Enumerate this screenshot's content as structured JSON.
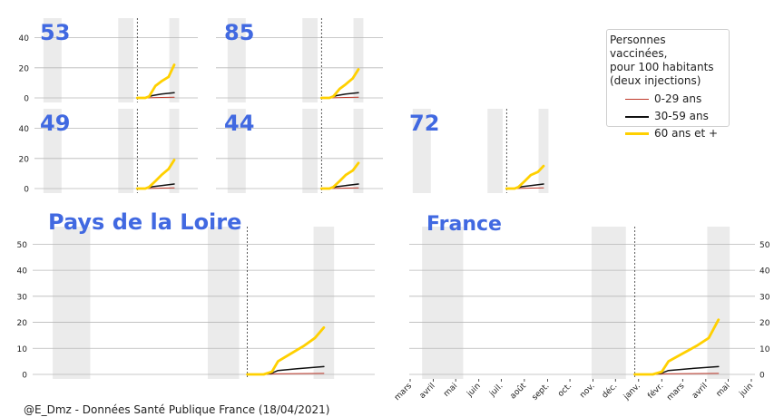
{
  "legend": {
    "title": "Personnes vaccinées,\npour 100 habitants\n(deux injections)",
    "items": [
      {
        "label": "0-29 ans",
        "color": "#c0392b"
      },
      {
        "label": "30-59 ans",
        "color": "#111111"
      },
      {
        "label": "60 ans et +",
        "color": "#ffd000"
      }
    ]
  },
  "credit": "@E_Dmz - Données Santé Publique France (18/04/2021)",
  "colors": {
    "title": "#4169e1",
    "band": "#ebebeb",
    "grid": "#b8b8b8"
  },
  "chart_data": {
    "type": "line",
    "x_axis": {
      "range": [
        "2020-03-01",
        "2021-06-01"
      ],
      "ticks": [
        "2020-03-01",
        "2020-04-01",
        "2020-05-01",
        "2020-06-01",
        "2020-07-01",
        "2020-08-01",
        "2020-09-01",
        "2020-10-01",
        "2020-11-01",
        "2020-12-01",
        "2021-01-01",
        "2021-02-01",
        "2021-03-01",
        "2021-04-01",
        "2021-05-01",
        "2021-06-01"
      ],
      "tick_labels": [
        "mars",
        "avril",
        "mai",
        "juin",
        "juil.",
        "août",
        "sept.",
        "oct.",
        "nov.",
        "déc.",
        "janv.",
        "févr.",
        "mars",
        "avril",
        "mai",
        "juin"
      ]
    },
    "shaded_periods": [
      [
        "2020-03-17",
        "2020-05-11"
      ],
      [
        "2020-10-30",
        "2020-12-15"
      ],
      [
        "2021-04-03",
        "2021-05-03"
      ]
    ],
    "reference_date": "2020-12-27",
    "panels": [
      {
        "title": "53",
        "ylim": [
          0,
          50
        ],
        "yticks": [
          0,
          20,
          40
        ],
        "series": [
          {
            "name": "0-29 ans",
            "x": [
              "2020-12-27",
              "2021-01-20",
              "2021-02-10",
              "2021-03-10",
              "2021-04-18"
            ],
            "y": [
              0,
              0,
              0.2,
              0.3,
              0.4
            ]
          },
          {
            "name": "30-59 ans",
            "x": [
              "2020-12-27",
              "2021-01-20",
              "2021-02-10",
              "2021-03-10",
              "2021-04-18"
            ],
            "y": [
              0,
              0,
              1.5,
              2.5,
              3.5
            ]
          },
          {
            "name": "60 ans et +",
            "x": [
              "2020-12-27",
              "2021-01-20",
              "2021-02-01",
              "2021-02-20",
              "2021-03-10",
              "2021-04-01",
              "2021-04-18"
            ],
            "y": [
              0,
              0,
              1,
              8,
              11,
              14,
              22
            ]
          }
        ]
      },
      {
        "title": "85",
        "ylim": [
          0,
          50
        ],
        "yticks": [
          0,
          20,
          40
        ],
        "series": [
          {
            "name": "0-29 ans",
            "x": [
              "2020-12-27",
              "2021-01-20",
              "2021-02-10",
              "2021-03-10",
              "2021-04-18"
            ],
            "y": [
              0,
              0,
              0.2,
              0.3,
              0.4
            ]
          },
          {
            "name": "30-59 ans",
            "x": [
              "2020-12-27",
              "2021-01-20",
              "2021-02-10",
              "2021-03-10",
              "2021-04-18"
            ],
            "y": [
              0,
              0,
              1.5,
              2.5,
              3.5
            ]
          },
          {
            "name": "60 ans et +",
            "x": [
              "2020-12-27",
              "2021-01-20",
              "2021-02-01",
              "2021-02-20",
              "2021-03-10",
              "2021-04-01",
              "2021-04-18"
            ],
            "y": [
              0,
              0,
              1,
              6,
              9,
              13,
              19
            ]
          }
        ]
      },
      {
        "title": "49",
        "ylim": [
          0,
          50
        ],
        "yticks": [
          0,
          20,
          40
        ],
        "series": [
          {
            "name": "0-29 ans",
            "x": [
              "2020-12-27",
              "2021-01-20",
              "2021-02-10",
              "2021-03-10",
              "2021-04-18"
            ],
            "y": [
              0,
              0,
              0.2,
              0.3,
              0.4
            ]
          },
          {
            "name": "30-59 ans",
            "x": [
              "2020-12-27",
              "2021-01-20",
              "2021-02-10",
              "2021-03-10",
              "2021-04-18"
            ],
            "y": [
              0,
              0,
              1.2,
              2.0,
              3.0
            ]
          },
          {
            "name": "60 ans et +",
            "x": [
              "2020-12-27",
              "2021-01-20",
              "2021-02-01",
              "2021-02-20",
              "2021-03-10",
              "2021-04-01",
              "2021-04-18"
            ],
            "y": [
              0,
              0,
              1,
              5,
              9,
              13,
              19
            ]
          }
        ]
      },
      {
        "title": "44",
        "ylim": [
          0,
          50
        ],
        "yticks": [
          0,
          20,
          40
        ],
        "series": [
          {
            "name": "0-29 ans",
            "x": [
              "2020-12-27",
              "2021-01-20",
              "2021-02-10",
              "2021-03-10",
              "2021-04-18"
            ],
            "y": [
              0,
              0,
              0.2,
              0.3,
              0.4
            ]
          },
          {
            "name": "30-59 ans",
            "x": [
              "2020-12-27",
              "2021-01-20",
              "2021-02-10",
              "2021-03-10",
              "2021-04-18"
            ],
            "y": [
              0,
              0,
              1.2,
              2.0,
              3.0
            ]
          },
          {
            "name": "60 ans et +",
            "x": [
              "2020-12-27",
              "2021-01-20",
              "2021-02-01",
              "2021-02-20",
              "2021-03-10",
              "2021-04-01",
              "2021-04-18"
            ],
            "y": [
              0,
              0,
              1,
              5,
              9,
              12,
              17
            ]
          }
        ]
      },
      {
        "title": "72",
        "ylim": [
          0,
          50
        ],
        "yticks": [],
        "series": [
          {
            "name": "0-29 ans",
            "x": [
              "2020-12-27",
              "2021-01-20",
              "2021-02-10",
              "2021-03-10",
              "2021-04-18"
            ],
            "y": [
              0,
              0,
              0.2,
              0.3,
              0.4
            ]
          },
          {
            "name": "30-59 ans",
            "x": [
              "2020-12-27",
              "2021-01-20",
              "2021-02-10",
              "2021-03-10",
              "2021-04-18"
            ],
            "y": [
              0,
              0,
              1.2,
              2.0,
              3.0
            ]
          },
          {
            "name": "60 ans et +",
            "x": [
              "2020-12-27",
              "2021-01-20",
              "2021-02-01",
              "2021-02-20",
              "2021-03-10",
              "2021-04-01",
              "2021-04-18"
            ],
            "y": [
              0,
              0,
              1,
              5,
              9,
              11,
              15
            ]
          }
        ]
      },
      {
        "title": "Pays de la Loire",
        "ylim": [
          0,
          55
        ],
        "yticks": [
          0,
          10,
          20,
          30,
          40,
          50
        ],
        "series": [
          {
            "name": "0-29 ans",
            "x": [
              "2020-12-27",
              "2021-01-20",
              "2021-02-10",
              "2021-03-10",
              "2021-04-18"
            ],
            "y": [
              0,
              0,
              0.2,
              0.3,
              0.4
            ]
          },
          {
            "name": "30-59 ans",
            "x": [
              "2020-12-27",
              "2021-01-20",
              "2021-02-01",
              "2021-02-10",
              "2021-03-10",
              "2021-04-18"
            ],
            "y": [
              0,
              0,
              0.5,
              1.5,
              2.2,
              3.0
            ]
          },
          {
            "name": "60 ans et +",
            "x": [
              "2020-12-27",
              "2021-01-20",
              "2021-02-01",
              "2021-02-10",
              "2021-03-01",
              "2021-03-20",
              "2021-04-05",
              "2021-04-18"
            ],
            "y": [
              0,
              0,
              1,
              5,
              8,
              11,
              14,
              18
            ]
          }
        ]
      },
      {
        "title": "France",
        "ylim": [
          0,
          55
        ],
        "yticks": [
          0,
          10,
          20,
          30,
          40,
          50
        ],
        "series": [
          {
            "name": "0-29 ans",
            "x": [
              "2020-12-27",
              "2021-01-20",
              "2021-02-10",
              "2021-03-10",
              "2021-04-18"
            ],
            "y": [
              0,
              0,
              0.2,
              0.3,
              0.4
            ]
          },
          {
            "name": "30-59 ans",
            "x": [
              "2020-12-27",
              "2021-01-20",
              "2021-02-01",
              "2021-02-10",
              "2021-03-10",
              "2021-04-18"
            ],
            "y": [
              0,
              0,
              0.5,
              1.5,
              2.2,
              3.0
            ]
          },
          {
            "name": "60 ans et +",
            "x": [
              "2020-12-27",
              "2021-01-20",
              "2021-02-01",
              "2021-02-10",
              "2021-03-01",
              "2021-03-20",
              "2021-04-05",
              "2021-04-18"
            ],
            "y": [
              0,
              0,
              1,
              5,
              8,
              11,
              14,
              21
            ]
          }
        ]
      }
    ]
  }
}
